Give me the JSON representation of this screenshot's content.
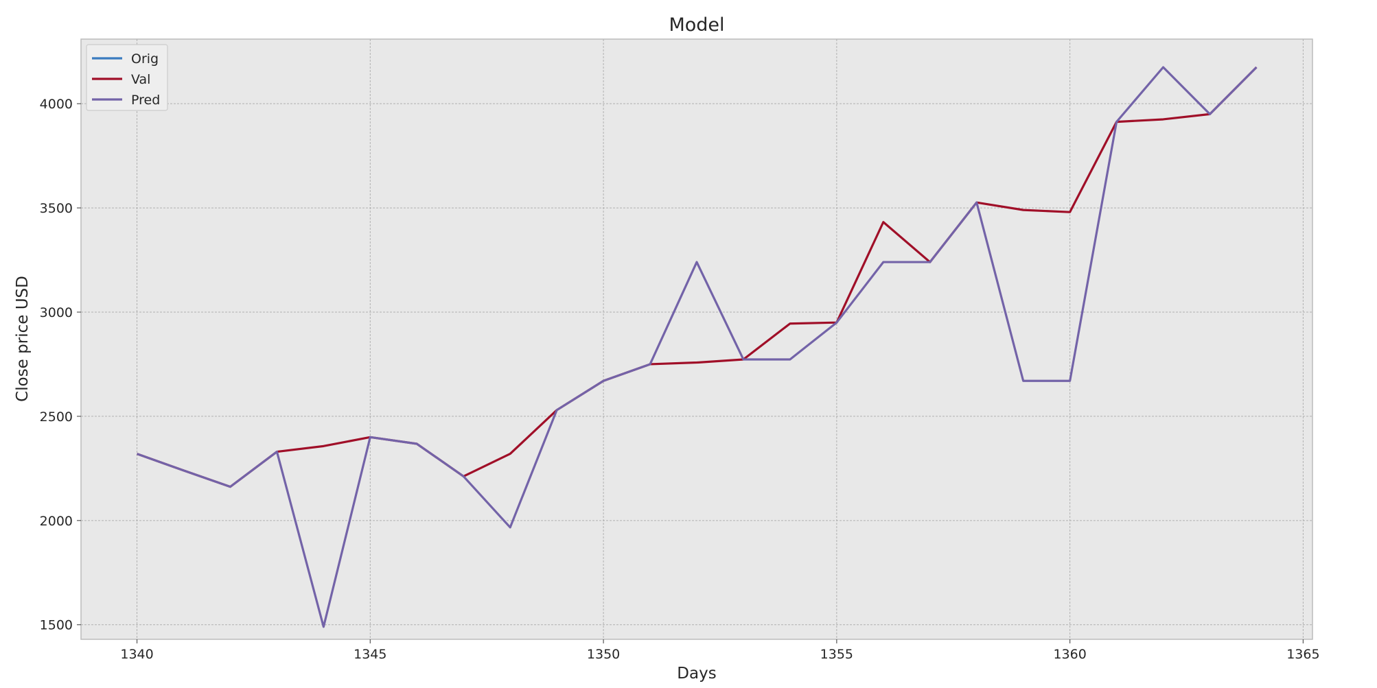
{
  "chart_data": {
    "type": "line",
    "title": "Model",
    "xlabel": "Days",
    "ylabel": "Close price USD",
    "xlim": [
      1338.8,
      1365.2
    ],
    "ylim": [
      1430,
      4310
    ],
    "xticks": [
      1340,
      1345,
      1350,
      1355,
      1360,
      1365
    ],
    "yticks": [
      1500,
      2000,
      2500,
      3000,
      3500,
      4000
    ],
    "grid": true,
    "legend_position": "top-left",
    "series": [
      {
        "name": "Orig",
        "color": "#3a7bbf",
        "x": [],
        "values": []
      },
      {
        "name": "Val",
        "color": "#a00f28",
        "x": [
          1340,
          1341,
          1342,
          1343,
          1344,
          1345,
          1346,
          1347,
          1348,
          1349,
          1350,
          1351,
          1352,
          1353,
          1354,
          1355,
          1356,
          1357,
          1358,
          1359,
          1360,
          1361,
          1362,
          1363,
          1364
        ],
        "values": [
          2320,
          2240,
          2162,
          2330,
          2357,
          2400,
          2368,
          2212,
          2320,
          2530,
          2670,
          2750,
          2758,
          2773,
          2945,
          2950,
          3432,
          3240,
          3526,
          3490,
          3480,
          3913,
          3925,
          3950,
          4175
        ]
      },
      {
        "name": "Pred",
        "color": "#7363a8",
        "x": [
          1340,
          1341,
          1342,
          1343,
          1344,
          1345,
          1346,
          1347,
          1348,
          1349,
          1350,
          1351,
          1352,
          1353,
          1354,
          1355,
          1356,
          1357,
          1358,
          1359,
          1360,
          1361,
          1362,
          1363,
          1364
        ],
        "values": [
          2320,
          2240,
          2162,
          2330,
          1490,
          2400,
          2368,
          2212,
          1967,
          2530,
          2670,
          2750,
          3240,
          2773,
          2773,
          2950,
          3240,
          3240,
          3526,
          2670,
          2670,
          3913,
          4175,
          3950,
          4175
        ]
      }
    ]
  }
}
